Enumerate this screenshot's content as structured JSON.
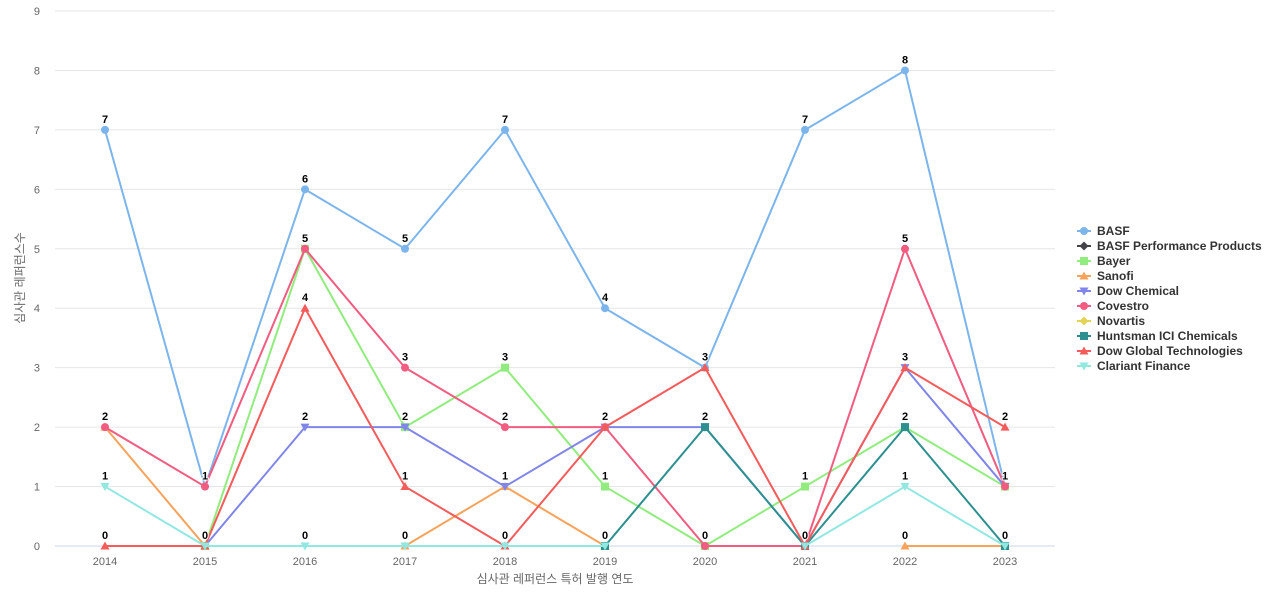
{
  "chart_data": {
    "type": "line",
    "xlabel": "심사관 레퍼런스 특허 발행 연도",
    "ylabel": "심사관 레퍼런스수",
    "ylim": [
      0,
      9
    ],
    "yticks": [
      "0",
      "1",
      "2",
      "3",
      "4",
      "5",
      "6",
      "7",
      "8",
      "9"
    ],
    "categories": [
      "2014",
      "2015",
      "2016",
      "2017",
      "2018",
      "2019",
      "2020",
      "2021",
      "2022",
      "2023"
    ],
    "grid": true,
    "legend_position": "right",
    "series": [
      {
        "name": "BASF",
        "color": "#7cb5ec",
        "marker": "circle",
        "values": [
          7,
          1,
          6,
          5,
          7,
          4,
          3,
          7,
          8,
          1
        ]
      },
      {
        "name": "BASF Performance Products",
        "color": "#434348",
        "marker": "diamond",
        "values": [
          null,
          null,
          null,
          null,
          null,
          null,
          null,
          null,
          null,
          null
        ]
      },
      {
        "name": "Bayer",
        "color": "#90ed7d",
        "marker": "square",
        "values": [
          null,
          0,
          5,
          2,
          3,
          1,
          0,
          1,
          2,
          1
        ]
      },
      {
        "name": "Sanofi",
        "color": "#f7a35c",
        "marker": "triangle",
        "values": [
          2,
          0,
          null,
          0,
          1,
          0,
          null,
          null,
          0,
          0
        ]
      },
      {
        "name": "Dow Chemical",
        "color": "#8085e9",
        "marker": "triangle-down",
        "values": [
          null,
          0,
          2,
          2,
          1,
          2,
          2,
          0,
          3,
          1
        ]
      },
      {
        "name": "Covestro",
        "color": "#f15c80",
        "marker": "circle",
        "values": [
          2,
          1,
          5,
          3,
          2,
          2,
          0,
          0,
          5,
          1
        ]
      },
      {
        "name": "Novartis",
        "color": "#e4d354",
        "marker": "diamond",
        "values": [
          null,
          null,
          null,
          null,
          null,
          null,
          null,
          null,
          null,
          null
        ]
      },
      {
        "name": "Huntsman ICI Chemicals",
        "color": "#2b908f",
        "marker": "square",
        "values": [
          null,
          null,
          null,
          null,
          null,
          0,
          2,
          0,
          2,
          0
        ]
      },
      {
        "name": "Dow Global Technologies",
        "color": "#f45b5b",
        "marker": "triangle",
        "values": [
          0,
          0,
          4,
          1,
          0,
          2,
          3,
          0,
          3,
          2
        ]
      },
      {
        "name": "Clariant Finance",
        "color": "#91e8e1",
        "marker": "triangle-down",
        "values": [
          1,
          0,
          0,
          0,
          0,
          0,
          null,
          0,
          1,
          0
        ]
      }
    ],
    "data_labels": [
      {
        "x": "2014",
        "y": 7,
        "text": "7"
      },
      {
        "x": "2014",
        "y": 2,
        "text": "2"
      },
      {
        "x": "2014",
        "y": 1,
        "text": "1"
      },
      {
        "x": "2014",
        "y": 0,
        "text": "0"
      },
      {
        "x": "2015",
        "y": 1,
        "text": "1"
      },
      {
        "x": "2015",
        "y": 0,
        "text": "0"
      },
      {
        "x": "2016",
        "y": 6,
        "text": "6"
      },
      {
        "x": "2016",
        "y": 5,
        "text": "5"
      },
      {
        "x": "2016",
        "y": 4,
        "text": "4"
      },
      {
        "x": "2016",
        "y": 2,
        "text": "2"
      },
      {
        "x": "2016",
        "y": 0,
        "text": "0"
      },
      {
        "x": "2017",
        "y": 5,
        "text": "5"
      },
      {
        "x": "2017",
        "y": 3,
        "text": "3"
      },
      {
        "x": "2017",
        "y": 2,
        "text": "2"
      },
      {
        "x": "2017",
        "y": 1,
        "text": "1"
      },
      {
        "x": "2017",
        "y": 0,
        "text": "0"
      },
      {
        "x": "2018",
        "y": 7,
        "text": "7"
      },
      {
        "x": "2018",
        "y": 3,
        "text": "3"
      },
      {
        "x": "2018",
        "y": 2,
        "text": "2"
      },
      {
        "x": "2018",
        "y": 1,
        "text": "1"
      },
      {
        "x": "2018",
        "y": 0,
        "text": "0"
      },
      {
        "x": "2019",
        "y": 4,
        "text": "4"
      },
      {
        "x": "2019",
        "y": 2,
        "text": "2"
      },
      {
        "x": "2019",
        "y": 1,
        "text": "1"
      },
      {
        "x": "2019",
        "y": 0,
        "text": "0"
      },
      {
        "x": "2020",
        "y": 3,
        "text": "3"
      },
      {
        "x": "2020",
        "y": 2,
        "text": "2"
      },
      {
        "x": "2020",
        "y": 0,
        "text": "0"
      },
      {
        "x": "2021",
        "y": 7,
        "text": "7"
      },
      {
        "x": "2021",
        "y": 1,
        "text": "1"
      },
      {
        "x": "2021",
        "y": 0,
        "text": "0"
      },
      {
        "x": "2022",
        "y": 8,
        "text": "8"
      },
      {
        "x": "2022",
        "y": 5,
        "text": "5"
      },
      {
        "x": "2022",
        "y": 3,
        "text": "3"
      },
      {
        "x": "2022",
        "y": 2,
        "text": "2"
      },
      {
        "x": "2022",
        "y": 1,
        "text": "1"
      },
      {
        "x": "2022",
        "y": 0,
        "text": "0"
      },
      {
        "x": "2023",
        "y": 2,
        "text": "2"
      },
      {
        "x": "2023",
        "y": 1,
        "text": "1"
      },
      {
        "x": "2023",
        "y": 0,
        "text": "0"
      }
    ]
  }
}
